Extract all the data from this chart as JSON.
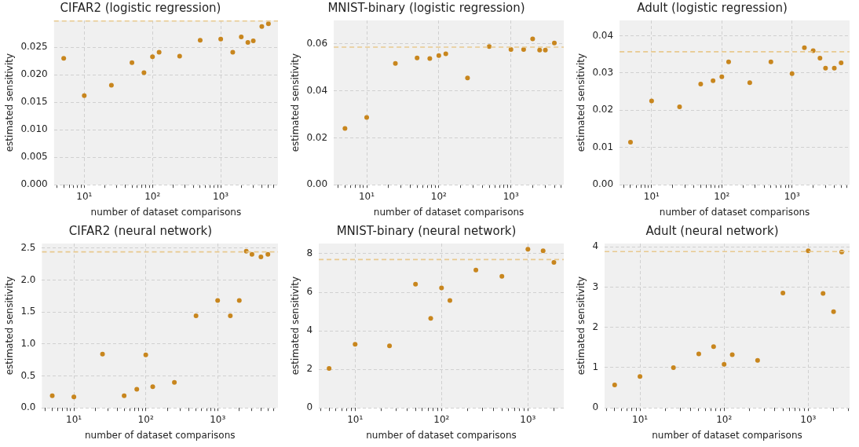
{
  "chart_data": [
    {
      "type": "scatter",
      "title": "CIFAR2 (logistic regression)",
      "xlabel": "number of dataset comparisons",
      "ylabel": "estimated sensitivity",
      "log": "x",
      "grid": true,
      "marker": "circle",
      "color": "#c8861e",
      "x": [
        5,
        10,
        25,
        50,
        75,
        100,
        125,
        250,
        500,
        1000,
        1500,
        2000,
        2500,
        3000,
        4000,
        5000
      ],
      "values": [
        0.023,
        0.0162,
        0.0181,
        0.0222,
        0.0204,
        0.0233,
        0.0241,
        0.0234,
        0.0263,
        0.0265,
        0.0241,
        0.0269,
        0.0259,
        0.0262,
        0.0288,
        0.0293
      ],
      "xlim": [
        3.6,
        6900
      ],
      "ylim": [
        0,
        0.0299
      ],
      "xticks": [
        {
          "value": 4,
          "label": null
        },
        {
          "value": 5,
          "label": null
        },
        {
          "value": 6,
          "label": null
        },
        {
          "value": 7,
          "label": null
        },
        {
          "value": 8,
          "label": null
        },
        {
          "value": 9,
          "label": null
        },
        {
          "value": 10,
          "label": "10¹"
        },
        {
          "value": 20,
          "label": null
        },
        {
          "value": 30,
          "label": null
        },
        {
          "value": 40,
          "label": null
        },
        {
          "value": 50,
          "label": null
        },
        {
          "value": 60,
          "label": null
        },
        {
          "value": 70,
          "label": null
        },
        {
          "value": 80,
          "label": null
        },
        {
          "value": 90,
          "label": null
        },
        {
          "value": 100,
          "label": "10²"
        },
        {
          "value": 200,
          "label": null
        },
        {
          "value": 300,
          "label": null
        },
        {
          "value": 400,
          "label": null
        },
        {
          "value": 500,
          "label": null
        },
        {
          "value": 600,
          "label": null
        },
        {
          "value": 700,
          "label": null
        },
        {
          "value": 800,
          "label": null
        },
        {
          "value": 900,
          "label": null
        },
        {
          "value": 1000,
          "label": "10³"
        },
        {
          "value": 2000,
          "label": null
        },
        {
          "value": 3000,
          "label": null
        },
        {
          "value": 4000,
          "label": null
        },
        {
          "value": 5000,
          "label": null
        },
        {
          "value": 6000,
          "label": null
        }
      ],
      "yticks": [
        {
          "value": 0,
          "label": "0.000"
        },
        {
          "value": 0.005,
          "label": "0.005"
        },
        {
          "value": 0.01,
          "label": "0.010"
        },
        {
          "value": 0.015,
          "label": "0.015"
        },
        {
          "value": 0.02,
          "label": "0.020"
        },
        {
          "value": 0.025,
          "label": "0.025"
        }
      ],
      "ref_lines": [
        {
          "axis": "y",
          "value": 0.0298,
          "color": "#e8c98f",
          "line_style": "dashed"
        }
      ]
    },
    {
      "type": "scatter",
      "title": "MNIST-binary (logistic regression)",
      "xlabel": "number of dataset comparisons",
      "ylabel": "estimated sensitivity",
      "log": "x",
      "grid": true,
      "marker": "circle",
      "color": "#c8861e",
      "x": [
        5,
        10,
        25,
        50,
        75,
        100,
        125,
        250,
        500,
        1000,
        1500,
        2000,
        2500,
        3000,
        4000
      ],
      "values": [
        0.024,
        0.0287,
        0.0517,
        0.054,
        0.0538,
        0.055,
        0.0558,
        0.0455,
        0.0589,
        0.0576,
        0.0576,
        0.0621,
        0.0574,
        0.0574,
        0.0604
      ],
      "xlim": [
        3.5,
        5400
      ],
      "ylim": [
        0,
        0.07
      ],
      "xticks": [
        {
          "value": 4,
          "label": null
        },
        {
          "value": 5,
          "label": null
        },
        {
          "value": 6,
          "label": null
        },
        {
          "value": 7,
          "label": null
        },
        {
          "value": 8,
          "label": null
        },
        {
          "value": 9,
          "label": null
        },
        {
          "value": 10,
          "label": "10¹"
        },
        {
          "value": 20,
          "label": null
        },
        {
          "value": 30,
          "label": null
        },
        {
          "value": 40,
          "label": null
        },
        {
          "value": 50,
          "label": null
        },
        {
          "value": 60,
          "label": null
        },
        {
          "value": 70,
          "label": null
        },
        {
          "value": 80,
          "label": null
        },
        {
          "value": 90,
          "label": null
        },
        {
          "value": 100,
          "label": "10²"
        },
        {
          "value": 200,
          "label": null
        },
        {
          "value": 300,
          "label": null
        },
        {
          "value": 400,
          "label": null
        },
        {
          "value": 500,
          "label": null
        },
        {
          "value": 600,
          "label": null
        },
        {
          "value": 700,
          "label": null
        },
        {
          "value": 800,
          "label": null
        },
        {
          "value": 900,
          "label": null
        },
        {
          "value": 1000,
          "label": "10³"
        },
        {
          "value": 2000,
          "label": null
        },
        {
          "value": 3000,
          "label": null
        },
        {
          "value": 4000,
          "label": null
        },
        {
          "value": 5000,
          "label": null
        }
      ],
      "yticks": [
        {
          "value": 0,
          "label": "0.00"
        },
        {
          "value": 0.02,
          "label": "0.02"
        },
        {
          "value": 0.04,
          "label": "0.04"
        },
        {
          "value": 0.06,
          "label": "0.06"
        }
      ],
      "ref_lines": [
        {
          "axis": "y",
          "value": 0.0586,
          "color": "#e8c98f",
          "line_style": "dashed"
        }
      ]
    },
    {
      "type": "scatter",
      "title": "Adult (logistic regression)",
      "xlabel": "number of dataset comparisons",
      "ylabel": "estimated sensitivity",
      "log": "x",
      "grid": true,
      "marker": "circle",
      "color": "#c8861e",
      "x": [
        5,
        10,
        25,
        50,
        75,
        100,
        125,
        250,
        500,
        1000,
        1500,
        2000,
        2500,
        3000,
        4000,
        5000
      ],
      "values": [
        0.0114,
        0.0225,
        0.0209,
        0.027,
        0.0279,
        0.029,
        0.033,
        0.0274,
        0.033,
        0.0298,
        0.0368,
        0.036,
        0.034,
        0.0313,
        0.0313,
        0.0327
      ],
      "xlim": [
        3.5,
        6600
      ],
      "ylim": [
        0,
        0.0441
      ],
      "xticks": [
        {
          "value": 4,
          "label": null
        },
        {
          "value": 5,
          "label": null
        },
        {
          "value": 6,
          "label": null
        },
        {
          "value": 7,
          "label": null
        },
        {
          "value": 8,
          "label": null
        },
        {
          "value": 9,
          "label": null
        },
        {
          "value": 10,
          "label": "10¹"
        },
        {
          "value": 20,
          "label": null
        },
        {
          "value": 30,
          "label": null
        },
        {
          "value": 40,
          "label": null
        },
        {
          "value": 50,
          "label": null
        },
        {
          "value": 60,
          "label": null
        },
        {
          "value": 70,
          "label": null
        },
        {
          "value": 80,
          "label": null
        },
        {
          "value": 90,
          "label": null
        },
        {
          "value": 100,
          "label": "10²"
        },
        {
          "value": 200,
          "label": null
        },
        {
          "value": 300,
          "label": null
        },
        {
          "value": 400,
          "label": null
        },
        {
          "value": 500,
          "label": null
        },
        {
          "value": 600,
          "label": null
        },
        {
          "value": 700,
          "label": null
        },
        {
          "value": 800,
          "label": null
        },
        {
          "value": 900,
          "label": null
        },
        {
          "value": 1000,
          "label": "10³"
        },
        {
          "value": 2000,
          "label": null
        },
        {
          "value": 3000,
          "label": null
        },
        {
          "value": 4000,
          "label": null
        },
        {
          "value": 5000,
          "label": null
        },
        {
          "value": 6000,
          "label": null
        }
      ],
      "yticks": [
        {
          "value": 0,
          "label": "0.00"
        },
        {
          "value": 0.01,
          "label": "0.01"
        },
        {
          "value": 0.02,
          "label": "0.02"
        },
        {
          "value": 0.03,
          "label": "0.03"
        },
        {
          "value": 0.04,
          "label": "0.04"
        }
      ],
      "ref_lines": [
        {
          "axis": "y",
          "value": 0.0357,
          "color": "#e8c98f",
          "line_style": "dashed"
        }
      ]
    },
    {
      "type": "scatter",
      "title": "CIFAR2 (neural network)",
      "xlabel": "number of dataset comparisons",
      "ylabel": "estimated sensitivity",
      "log": "x",
      "grid": true,
      "marker": "circle",
      "color": "#c8861e",
      "x": [
        5,
        10,
        25,
        50,
        75,
        100,
        125,
        250,
        500,
        1000,
        1500,
        2000,
        2500,
        3000,
        4000,
        5000
      ],
      "values": [
        0.19,
        0.17,
        0.84,
        0.19,
        0.29,
        0.83,
        0.33,
        0.4,
        1.44,
        1.68,
        1.44,
        1.68,
        2.45,
        2.4,
        2.36,
        2.4
      ],
      "xlim": [
        3.6,
        6900
      ],
      "ylim": [
        0,
        2.57
      ],
      "xticks": [
        {
          "value": 4,
          "label": null
        },
        {
          "value": 5,
          "label": null
        },
        {
          "value": 6,
          "label": null
        },
        {
          "value": 7,
          "label": null
        },
        {
          "value": 8,
          "label": null
        },
        {
          "value": 9,
          "label": null
        },
        {
          "value": 10,
          "label": "10¹"
        },
        {
          "value": 20,
          "label": null
        },
        {
          "value": 30,
          "label": null
        },
        {
          "value": 40,
          "label": null
        },
        {
          "value": 50,
          "label": null
        },
        {
          "value": 60,
          "label": null
        },
        {
          "value": 70,
          "label": null
        },
        {
          "value": 80,
          "label": null
        },
        {
          "value": 90,
          "label": null
        },
        {
          "value": 100,
          "label": "10²"
        },
        {
          "value": 200,
          "label": null
        },
        {
          "value": 300,
          "label": null
        },
        {
          "value": 400,
          "label": null
        },
        {
          "value": 500,
          "label": null
        },
        {
          "value": 600,
          "label": null
        },
        {
          "value": 700,
          "label": null
        },
        {
          "value": 800,
          "label": null
        },
        {
          "value": 900,
          "label": null
        },
        {
          "value": 1000,
          "label": "10³"
        },
        {
          "value": 2000,
          "label": null
        },
        {
          "value": 3000,
          "label": null
        },
        {
          "value": 4000,
          "label": null
        },
        {
          "value": 5000,
          "label": null
        },
        {
          "value": 6000,
          "label": null
        }
      ],
      "yticks": [
        {
          "value": 0,
          "label": "0.0"
        },
        {
          "value": 0.5,
          "label": "0.5"
        },
        {
          "value": 1,
          "label": "1.0"
        },
        {
          "value": 1.5,
          "label": "1.5"
        },
        {
          "value": 2,
          "label": "2.0"
        },
        {
          "value": 2.5,
          "label": "2.5"
        }
      ],
      "ref_lines": [
        {
          "axis": "y",
          "value": 2.44,
          "color": "#e8c98f",
          "line_style": "dashed"
        }
      ]
    },
    {
      "type": "scatter",
      "title": "MNIST-binary (neural network)",
      "xlabel": "number of dataset comparisons",
      "ylabel": "estimated sensitivity",
      "log": "x",
      "grid": true,
      "marker": "circle",
      "color": "#c8861e",
      "x": [
        5,
        10,
        25,
        50,
        75,
        100,
        125,
        250,
        500,
        1000,
        1500,
        2000
      ],
      "values": [
        2.05,
        3.3,
        3.22,
        6.42,
        4.65,
        6.23,
        5.57,
        7.15,
        6.83,
        8.23,
        8.15,
        7.55
      ],
      "xlim": [
        3.8,
        2600
      ],
      "ylim": [
        0,
        8.53
      ],
      "xticks": [
        {
          "value": 4,
          "label": null
        },
        {
          "value": 5,
          "label": null
        },
        {
          "value": 6,
          "label": null
        },
        {
          "value": 7,
          "label": null
        },
        {
          "value": 8,
          "label": null
        },
        {
          "value": 9,
          "label": null
        },
        {
          "value": 10,
          "label": "10¹"
        },
        {
          "value": 20,
          "label": null
        },
        {
          "value": 30,
          "label": null
        },
        {
          "value": 40,
          "label": null
        },
        {
          "value": 50,
          "label": null
        },
        {
          "value": 60,
          "label": null
        },
        {
          "value": 70,
          "label": null
        },
        {
          "value": 80,
          "label": null
        },
        {
          "value": 90,
          "label": null
        },
        {
          "value": 100,
          "label": "10²"
        },
        {
          "value": 200,
          "label": null
        },
        {
          "value": 300,
          "label": null
        },
        {
          "value": 400,
          "label": null
        },
        {
          "value": 500,
          "label": null
        },
        {
          "value": 600,
          "label": null
        },
        {
          "value": 700,
          "label": null
        },
        {
          "value": 800,
          "label": null
        },
        {
          "value": 900,
          "label": null
        },
        {
          "value": 1000,
          "label": "10³"
        },
        {
          "value": 2000,
          "label": null
        }
      ],
      "yticks": [
        0,
        2,
        4,
        6,
        8
      ],
      "ref_lines": [
        {
          "axis": "y",
          "value": 7.7,
          "color": "#e8c98f",
          "line_style": "dashed"
        }
      ]
    },
    {
      "type": "scatter",
      "title": "Adult (neural network)",
      "xlabel": "number of dataset comparisons",
      "ylabel": "estimated sensitivity",
      "log": "x",
      "grid": true,
      "marker": "circle",
      "color": "#c8861e",
      "x": [
        5,
        10,
        25,
        50,
        75,
        100,
        125,
        250,
        500,
        1000,
        1500,
        2000,
        2500
      ],
      "values": [
        0.57,
        0.78,
        1.0,
        1.34,
        1.52,
        1.08,
        1.32,
        1.18,
        2.85,
        3.9,
        2.84,
        2.39,
        3.87
      ],
      "xlim": [
        3.8,
        3100
      ],
      "ylim": [
        0,
        4.08
      ],
      "xticks": [
        {
          "value": 4,
          "label": null
        },
        {
          "value": 5,
          "label": null
        },
        {
          "value": 6,
          "label": null
        },
        {
          "value": 7,
          "label": null
        },
        {
          "value": 8,
          "label": null
        },
        {
          "value": 9,
          "label": null
        },
        {
          "value": 10,
          "label": "10¹"
        },
        {
          "value": 20,
          "label": null
        },
        {
          "value": 30,
          "label": null
        },
        {
          "value": 40,
          "label": null
        },
        {
          "value": 50,
          "label": null
        },
        {
          "value": 60,
          "label": null
        },
        {
          "value": 70,
          "label": null
        },
        {
          "value": 80,
          "label": null
        },
        {
          "value": 90,
          "label": null
        },
        {
          "value": 100,
          "label": "10²"
        },
        {
          "value": 200,
          "label": null
        },
        {
          "value": 300,
          "label": null
        },
        {
          "value": 400,
          "label": null
        },
        {
          "value": 500,
          "label": null
        },
        {
          "value": 600,
          "label": null
        },
        {
          "value": 700,
          "label": null
        },
        {
          "value": 800,
          "label": null
        },
        {
          "value": 900,
          "label": null
        },
        {
          "value": 1000,
          "label": "10³"
        },
        {
          "value": 2000,
          "label": null
        },
        {
          "value": 3000,
          "label": null
        }
      ],
      "yticks": [
        0,
        1,
        2,
        3,
        4
      ],
      "ref_lines": [
        {
          "axis": "y",
          "value": 3.88,
          "color": "#e8c98f",
          "line_style": "dashed"
        }
      ]
    }
  ]
}
